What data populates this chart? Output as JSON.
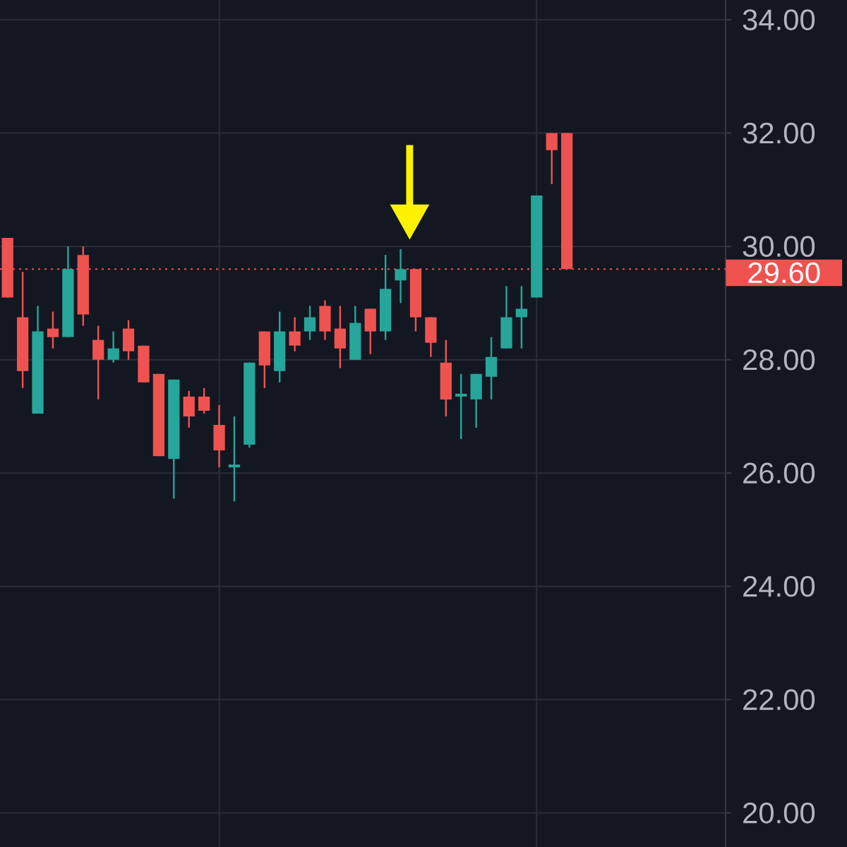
{
  "chart_data": {
    "type": "candlestick",
    "categories": [
      null,
      null,
      null,
      null,
      null,
      null,
      null,
      null,
      null,
      null,
      null,
      null,
      null,
      null,
      null,
      null,
      null,
      null,
      null,
      null,
      null,
      null,
      null,
      null,
      null,
      null,
      null,
      null,
      null,
      null,
      null,
      null,
      null,
      null,
      null,
      null,
      null,
      null,
      null,
      null,
      null,
      null,
      null,
      null,
      null,
      null,
      null,
      null
    ],
    "ohlc": [
      [
        30.15,
        30.15,
        29.1,
        29.1
      ],
      [
        28.75,
        29.55,
        27.5,
        27.8
      ],
      [
        27.05,
        28.95,
        27.05,
        28.5
      ],
      [
        28.55,
        28.85,
        28.2,
        28.4
      ],
      [
        28.4,
        30.0,
        28.4,
        29.6
      ],
      [
        29.85,
        30.0,
        28.6,
        28.8
      ],
      [
        28.35,
        28.6,
        27.3,
        28.0
      ],
      [
        28.0,
        28.5,
        27.95,
        28.2
      ],
      [
        28.55,
        28.7,
        28.0,
        28.15
      ],
      [
        28.25,
        28.25,
        27.6,
        27.6
      ],
      [
        27.75,
        27.75,
        26.3,
        26.3
      ],
      [
        26.25,
        27.65,
        25.55,
        27.65
      ],
      [
        27.35,
        27.45,
        26.8,
        27.0
      ],
      [
        27.35,
        27.5,
        27.05,
        27.1
      ],
      [
        26.85,
        27.2,
        26.1,
        26.4
      ],
      [
        26.1,
        27.0,
        25.5,
        26.15
      ],
      [
        26.5,
        27.95,
        26.45,
        27.95
      ],
      [
        28.5,
        28.5,
        27.5,
        27.9
      ],
      [
        27.8,
        28.85,
        27.6,
        28.5
      ],
      [
        28.5,
        28.75,
        28.15,
        28.25
      ],
      [
        28.5,
        28.95,
        28.35,
        28.75
      ],
      [
        28.95,
        29.05,
        28.35,
        28.5
      ],
      [
        28.55,
        28.95,
        27.85,
        28.2
      ],
      [
        28.0,
        28.95,
        28.0,
        28.65
      ],
      [
        28.9,
        28.9,
        28.1,
        28.5
      ],
      [
        28.5,
        29.85,
        28.35,
        29.25
      ],
      [
        29.4,
        29.95,
        29.0,
        29.6
      ],
      [
        29.6,
        29.6,
        28.5,
        28.75
      ],
      [
        28.75,
        28.75,
        28.05,
        28.3
      ],
      [
        27.95,
        28.35,
        27.0,
        27.3
      ],
      [
        27.35,
        27.75,
        26.6,
        27.4
      ],
      [
        27.3,
        27.75,
        26.8,
        27.75
      ],
      [
        27.7,
        28.4,
        27.3,
        28.05
      ],
      [
        28.2,
        29.3,
        28.2,
        28.75
      ],
      [
        28.75,
        29.3,
        28.2,
        28.9
      ],
      [
        29.1,
        30.9,
        29.1,
        30.9
      ],
      [
        32.0,
        32.0,
        31.1,
        31.7
      ],
      [
        32.0,
        32.0,
        29.6,
        29.6
      ],
      null,
      null,
      null,
      null,
      null,
      null,
      null,
      null,
      null,
      null
    ],
    "colors": [
      "#ef5350",
      "#ef5350",
      "#26a69a",
      "#ef5350",
      "#26a69a",
      "#ef5350",
      "#ef5350",
      "#26a69a",
      "#ef5350",
      "#ef5350",
      "#ef5350",
      "#26a69a",
      "#ef5350",
      "#ef5350",
      "#ef5350",
      "#26a69a",
      "#26a69a",
      "#ef5350",
      "#26a69a",
      "#ef5350",
      "#26a69a",
      "#ef5350",
      "#ef5350",
      "#26a69a",
      "#ef5350",
      "#26a69a",
      "#26a69a",
      "#ef5350",
      "#ef5350",
      "#ef5350",
      "#26a69a",
      "#26a69a",
      "#26a69a",
      "#26a69a",
      "#26a69a",
      "#26a69a",
      "#ef5350",
      "#ef5350",
      null,
      null,
      null,
      null,
      null,
      null,
      null,
      null,
      null,
      null
    ],
    "ylim": [
      19.4,
      34.35
    ],
    "yticks": [
      {
        "value": 20,
        "label": "20.00"
      },
      {
        "value": 22,
        "label": "22.00"
      },
      {
        "value": 24,
        "label": "24.00"
      },
      {
        "value": 26,
        "label": "26.00"
      },
      {
        "value": 28,
        "label": "28.00"
      },
      {
        "value": 30,
        "label": "30.00"
      },
      {
        "value": 32,
        "label": "32.00"
      },
      {
        "value": 34,
        "label": "34.00"
      }
    ],
    "grid": true,
    "tick_labels": "y",
    "ref_lines": [
      {
        "axis": "y",
        "value": 29.6,
        "label": "29.60",
        "color": "#ef5350",
        "line_style": "dotted"
      }
    ]
  }
}
